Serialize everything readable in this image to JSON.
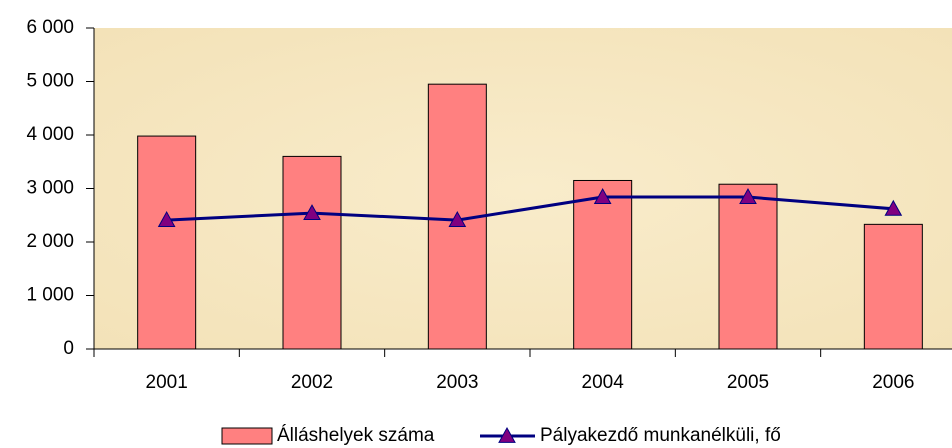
{
  "chart_data": {
    "type": "bar-line",
    "categories": [
      "2001",
      "2002",
      "2003",
      "2004",
      "2005",
      "2006"
    ],
    "series": [
      {
        "name": "Álláshelyek száma",
        "type": "bar",
        "color": "#ff8080",
        "values": [
          3980,
          3600,
          4950,
          3150,
          3080,
          2330
        ]
      },
      {
        "name": "Pályakezdő munkanélküli, fő",
        "type": "line",
        "color": "#000080",
        "marker_color": "#800080",
        "values": [
          2410,
          2540,
          2410,
          2840,
          2840,
          2620
        ]
      }
    ],
    "ylim": [
      0,
      6000
    ],
    "yticks": [
      0,
      {
        "value": 1000,
        "label": "1 000"
      },
      {
        "value": 2000,
        "label": "2 000"
      },
      {
        "value": 3000,
        "label": "3 000"
      },
      {
        "value": 4000,
        "label": "4 000"
      },
      {
        "value": 5000,
        "label": "5 000"
      },
      {
        "value": 6000,
        "label": "6 000"
      }
    ],
    "legend": "bottom"
  }
}
